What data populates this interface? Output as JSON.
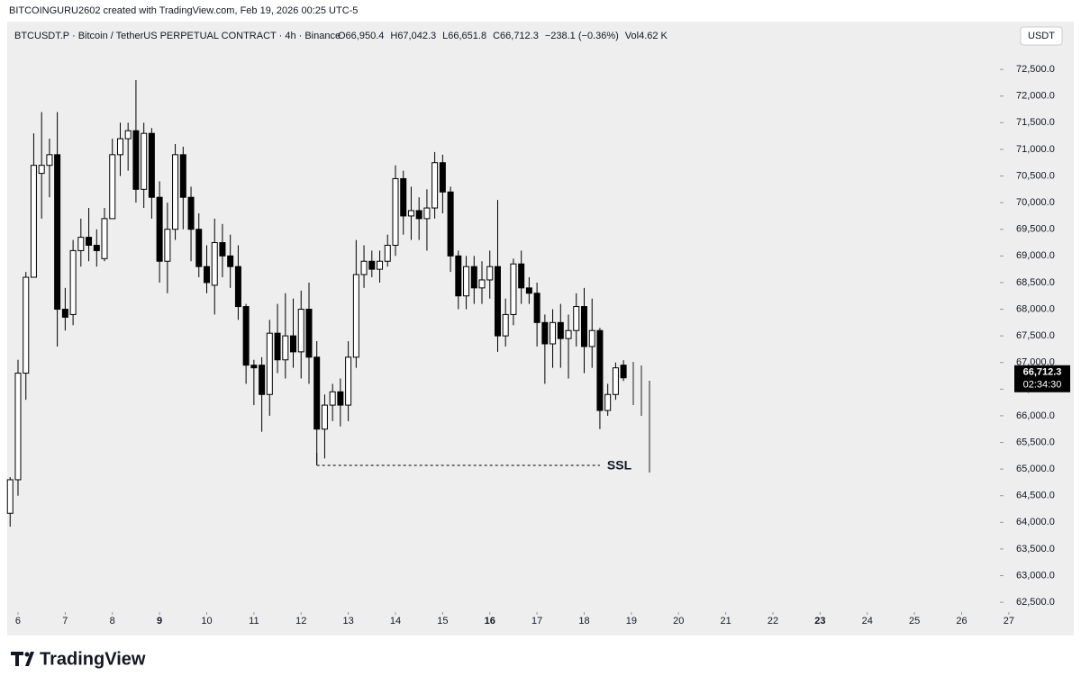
{
  "watermark": "BITCOINGURU2602 created with TradingView.com, Feb 19, 2026 00:25 UTC-5",
  "brand": "TradingView",
  "chart_data": {
    "type": "candlestick",
    "symbol": "BTCUSDT.P · Bitcoin / TetherUS PERPETUAL CONTRACT · 4h · Binance",
    "legend_values": [
      "O66,950.4",
      "H67,042.3",
      "L66,651.8",
      "C66,712.3",
      "−238.1 (−0.36%)",
      "Vol4.62 K"
    ],
    "currency": "USDT",
    "last_price_label": "66,712.3",
    "countdown": "02:34:30",
    "up_color": "#ffffff",
    "down_color": "#000000",
    "x": [
      5.833,
      6,
      6.167,
      6.333,
      6.5,
      6.667,
      6.833,
      7,
      7.167,
      7.333,
      7.5,
      7.667,
      7.833,
      8,
      8.167,
      8.333,
      8.5,
      8.667,
      8.833,
      9,
      9.167,
      9.333,
      9.5,
      9.667,
      9.833,
      10,
      10.167,
      10.333,
      10.5,
      10.667,
      10.833,
      11,
      11.167,
      11.333,
      11.5,
      11.667,
      11.833,
      12,
      12.167,
      12.333,
      12.5,
      12.667,
      12.833,
      13,
      13.167,
      13.333,
      13.5,
      13.667,
      13.833,
      14,
      14.167,
      14.333,
      14.5,
      14.667,
      14.833,
      15,
      15.167,
      15.333,
      15.5,
      15.667,
      15.833,
      16,
      16.167,
      16.333,
      16.5,
      16.667,
      16.833,
      17,
      17.167,
      17.333,
      17.5,
      17.667,
      17.833,
      18,
      18.167,
      18.333,
      18.5,
      18.667,
      18.833
    ],
    "open": [
      64170,
      64800,
      66800,
      68600,
      70550,
      70700,
      70900,
      68000,
      67900,
      69100,
      69350,
      69200,
      68950,
      69700,
      70900,
      71200,
      71350,
      70250,
      71300,
      70100,
      68900,
      69500,
      70900,
      70100,
      69500,
      68800,
      68450,
      69250,
      69000,
      68800,
      68050,
      66950,
      66950,
      66400,
      67550,
      67050,
      67500,
      67200,
      68000,
      67100,
      65750,
      66200,
      66450,
      66200,
      67100,
      68650,
      68900,
      68750,
      68900,
      69200,
      70450,
      69750,
      69850,
      69700,
      69900,
      70750,
      70200,
      69000,
      68250,
      68800,
      68400,
      68550,
      68800,
      67500,
      67900,
      68850,
      68400,
      68300,
      67750,
      67350,
      67750,
      67450,
      67600,
      68050,
      67300,
      67600,
      66100,
      66400,
      66950.4
    ],
    "high": [
      64850,
      67050,
      68700,
      71300,
      71700,
      71200,
      71700,
      68400,
      69300,
      69700,
      69900,
      69500,
      69900,
      71200,
      71500,
      71500,
      72300,
      71500,
      71400,
      70400,
      70000,
      71100,
      71050,
      70300,
      69800,
      69200,
      69700,
      69600,
      69400,
      69200,
      68100,
      67050,
      67100,
      67800,
      68100,
      68300,
      68200,
      68350,
      68500,
      67400,
      66400,
      66600,
      66700,
      67400,
      69300,
      69200,
      69100,
      69100,
      69400,
      70700,
      70600,
      70300,
      70100,
      70250,
      70950,
      70900,
      70300,
      69100,
      69000,
      69000,
      68900,
      69100,
      70050,
      68200,
      68950,
      69100,
      68600,
      68500,
      67900,
      68000,
      68100,
      67900,
      68300,
      68400,
      68200,
      67650,
      66600,
      67000,
      67042.3
    ],
    "low": [
      63920,
      64500,
      66300,
      68600,
      69700,
      70100,
      67300,
      67600,
      67700,
      68800,
      68900,
      68800,
      68900,
      69700,
      70500,
      70600,
      70000,
      69900,
      69700,
      68500,
      68300,
      69300,
      69500,
      68900,
      68600,
      68300,
      67900,
      68600,
      68400,
      67800,
      66600,
      66200,
      65700,
      66000,
      66800,
      66700,
      66900,
      66700,
      66600,
      65100,
      65200,
      65900,
      65800,
      65900,
      66900,
      68400,
      68600,
      68500,
      68800,
      69000,
      69400,
      69300,
      69300,
      69100,
      69700,
      69800,
      68700,
      68000,
      68000,
      68100,
      68100,
      68200,
      67200,
      67300,
      67700,
      68100,
      68100,
      67300,
      66600,
      66900,
      66900,
      66700,
      67300,
      66800,
      66900,
      65750,
      66000,
      66300,
      66651.8
    ],
    "close": [
      64800,
      66800,
      68600,
      70700,
      70700,
      70900,
      68000,
      67850,
      69100,
      69350,
      69200,
      69100,
      69700,
      70900,
      71200,
      71350,
      70250,
      71300,
      70100,
      68900,
      69500,
      70900,
      70100,
      69500,
      68800,
      68500,
      69250,
      69000,
      68800,
      68050,
      66950,
      66900,
      66400,
      67550,
      67050,
      67500,
      67200,
      68000,
      67100,
      65750,
      66200,
      66450,
      66200,
      67100,
      68650,
      68900,
      68750,
      68900,
      69200,
      70450,
      69750,
      69850,
      69700,
      69900,
      70750,
      70200,
      69000,
      68250,
      68800,
      68400,
      68550,
      68800,
      67500,
      67900,
      68850,
      68400,
      68300,
      67750,
      67350,
      67750,
      67450,
      67600,
      68050,
      67300,
      67600,
      66100,
      66400,
      66900,
      66712.3
    ],
    "annotation": {
      "text": "SSL",
      "price": 65070,
      "x_start": 12.333,
      "x_end": 18.333
    },
    "xlim": [
      5.771,
      27.27
    ],
    "xticks": [
      6,
      7,
      8,
      9,
      10,
      11,
      12,
      13,
      14,
      15,
      16,
      17,
      18,
      19,
      20,
      21,
      22,
      23,
      24,
      25,
      26,
      27
    ],
    "week_start_ticks": [
      9,
      16,
      23
    ],
    "ylim": [
      62350,
      73330
    ],
    "yticks": [
      {
        "value": 62500,
        "label": "62,500.0"
      },
      {
        "value": 63000,
        "label": "63,000.0"
      },
      {
        "value": 63500,
        "label": "63,500.0"
      },
      {
        "value": 64000,
        "label": "64,000.0"
      },
      {
        "value": 64500,
        "label": "64,500.0"
      },
      {
        "value": 65000,
        "label": "65,000.0"
      },
      {
        "value": 65500,
        "label": "65,500.0"
      },
      {
        "value": 66000,
        "label": "66,000.0"
      },
      {
        "value": 66500,
        "label": "66,500.0"
      },
      {
        "value": 67000,
        "label": "67,000.0"
      },
      {
        "value": 67500,
        "label": "67,500.0"
      },
      {
        "value": 68000,
        "label": "68,000.0"
      },
      {
        "value": 68500,
        "label": "68,500.0"
      },
      {
        "value": 69000,
        "label": "69,000.0"
      },
      {
        "value": 69500,
        "label": "69,500.0"
      },
      {
        "value": 70000,
        "label": "70,000.0"
      },
      {
        "value": 70500,
        "label": "70,500.0"
      },
      {
        "value": 71000,
        "label": "71,000.0"
      },
      {
        "value": 71500,
        "label": "71,500.0"
      },
      {
        "value": 72000,
        "label": "72,000.0"
      },
      {
        "value": 72500,
        "label": "72,500.0"
      }
    ],
    "grid": false
  }
}
